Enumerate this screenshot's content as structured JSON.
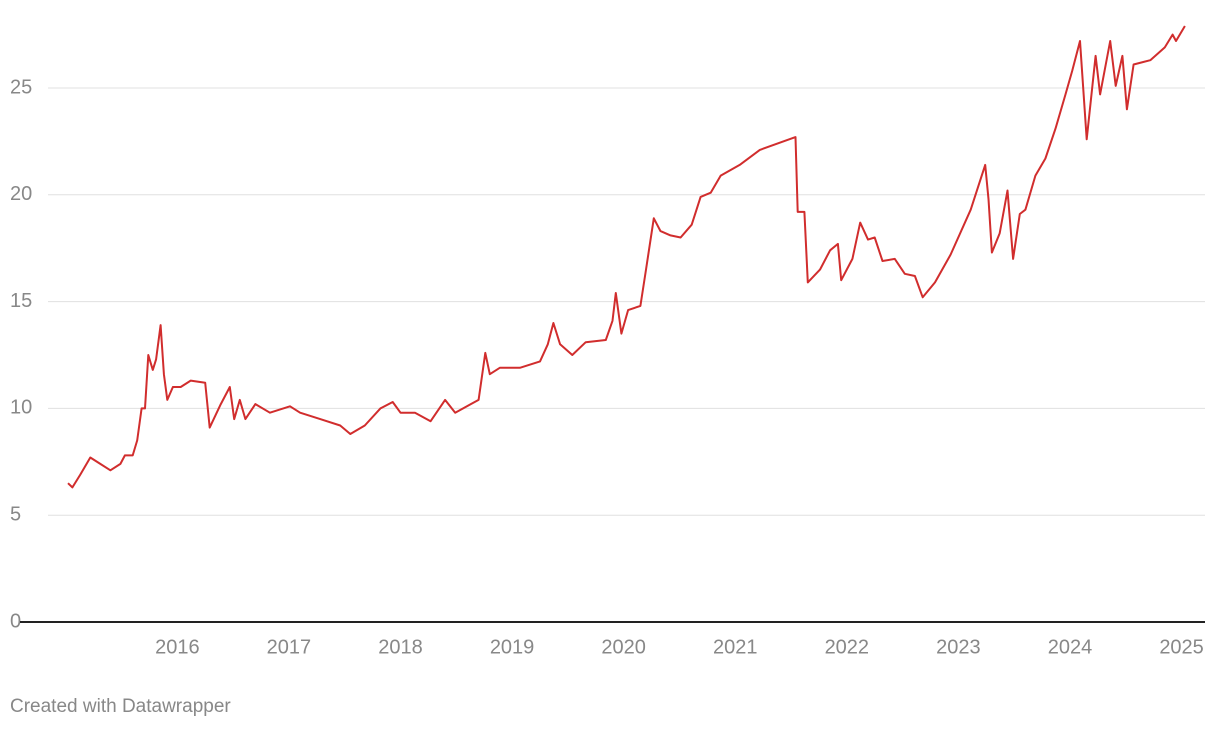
{
  "chart_data": {
    "type": "line",
    "footer": "Created with Datawrapper",
    "x": [
      2015.02,
      2015.06,
      2015.13,
      2015.22,
      2015.31,
      2015.4,
      2015.49,
      2015.53,
      2015.6,
      2015.64,
      2015.68,
      2015.71,
      2015.74,
      2015.78,
      2015.81,
      2015.85,
      2015.88,
      2015.91,
      2015.96,
      2016.03,
      2016.12,
      2016.25,
      2016.29,
      2016.39,
      2016.47,
      2016.51,
      2016.56,
      2016.61,
      2016.7,
      2016.83,
      2017.01,
      2017.1,
      2017.28,
      2017.46,
      2017.55,
      2017.68,
      2017.82,
      2017.93,
      2018.0,
      2018.13,
      2018.27,
      2018.4,
      2018.49,
      2018.63,
      2018.7,
      2018.76,
      2018.8,
      2018.89,
      2019.07,
      2019.25,
      2019.32,
      2019.37,
      2019.43,
      2019.54,
      2019.66,
      2019.84,
      2019.9,
      2019.93,
      2019.98,
      2020.04,
      2020.15,
      2020.2,
      2020.27,
      2020.33,
      2020.42,
      2020.51,
      2020.61,
      2020.69,
      2020.78,
      2020.87,
      2021.04,
      2021.22,
      2021.54,
      2021.56,
      2021.62,
      2021.65,
      2021.76,
      2021.85,
      2021.92,
      2021.95,
      2022.05,
      2022.12,
      2022.19,
      2022.25,
      2022.32,
      2022.43,
      2022.52,
      2022.61,
      2022.68,
      2022.79,
      2022.93,
      2023.11,
      2023.24,
      2023.27,
      2023.3,
      2023.37,
      2023.44,
      2023.49,
      2023.55,
      2023.6,
      2023.69,
      2023.78,
      2023.87,
      2023.96,
      2024.02,
      2024.09,
      2024.15,
      2024.23,
      2024.27,
      2024.36,
      2024.41,
      2024.47,
      2024.51,
      2024.57,
      2024.72,
      2024.85,
      2024.92,
      2024.95,
      2025.03
    ],
    "series": [
      {
        "color": "#d12d2d",
        "values": [
          6.5,
          6.3,
          6.9,
          7.7,
          7.4,
          7.1,
          7.4,
          7.8,
          7.8,
          8.5,
          10.0,
          10.0,
          12.5,
          11.8,
          12.3,
          13.9,
          11.6,
          10.4,
          11.0,
          11.0,
          11.3,
          11.2,
          9.1,
          10.2,
          11.0,
          9.5,
          10.4,
          9.5,
          10.2,
          9.8,
          10.1,
          9.8,
          9.5,
          9.2,
          8.8,
          9.2,
          10.0,
          10.3,
          9.8,
          9.8,
          9.4,
          10.4,
          9.8,
          10.2,
          10.4,
          12.6,
          11.6,
          11.9,
          11.9,
          12.2,
          13.0,
          14.0,
          13.0,
          12.5,
          13.1,
          13.2,
          14.1,
          15.4,
          13.5,
          14.6,
          14.8,
          16.5,
          18.9,
          18.3,
          18.1,
          18.0,
          18.6,
          19.9,
          20.1,
          20.9,
          21.4,
          22.1,
          22.7,
          19.2,
          19.2,
          15.9,
          16.5,
          17.4,
          17.7,
          16.0,
          17.0,
          18.7,
          17.9,
          18.0,
          16.9,
          17.0,
          16.3,
          16.2,
          15.2,
          15.9,
          17.2,
          19.3,
          21.4,
          19.8,
          17.3,
          18.2,
          20.2,
          17.0,
          19.1,
          19.3,
          20.9,
          21.7,
          23.1,
          24.7,
          25.8,
          27.2,
          22.6,
          26.5,
          24.7,
          27.2,
          25.1,
          26.5,
          24.0,
          26.1,
          26.3,
          26.9,
          27.5,
          27.2,
          27.9
        ]
      }
    ],
    "xlim": [
      2014.59,
      2025.21
    ],
    "xticks": [
      2016,
      2017,
      2018,
      2019,
      2020,
      2021,
      2022,
      2023,
      2024,
      2025
    ],
    "ylim": [
      0,
      28.3
    ],
    "yticks": [
      0,
      5,
      10,
      15,
      20,
      25
    ],
    "grid": true
  }
}
